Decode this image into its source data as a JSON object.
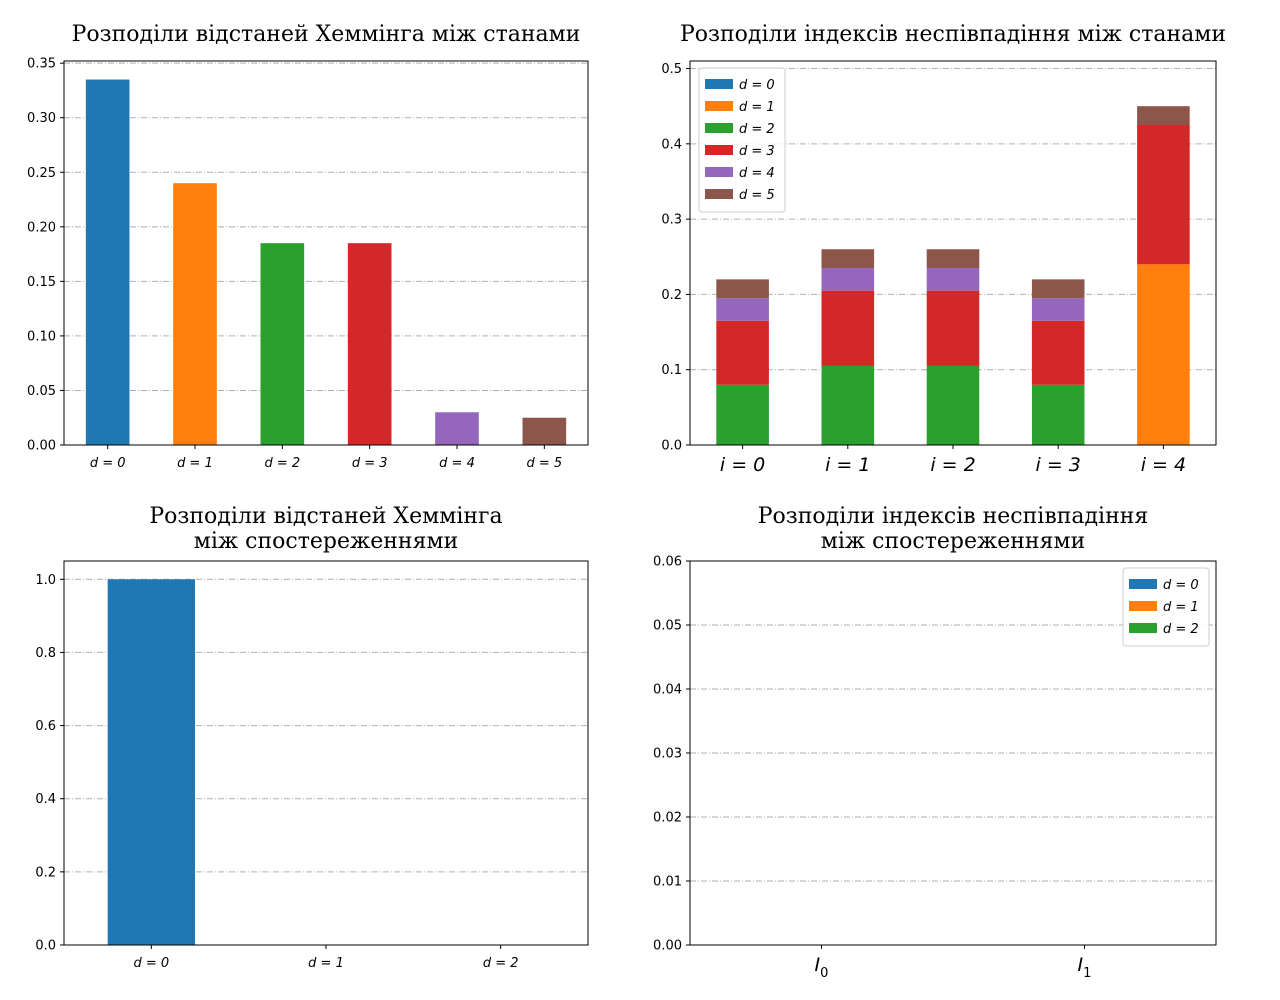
{
  "chart_data": [
    {
      "type": "bar",
      "title": [
        "Розподіли відстаней Хеммінга між станами"
      ],
      "categories": [
        "d = 0",
        "d = 1",
        "d = 2",
        "d = 3",
        "d = 4",
        "d = 5"
      ],
      "values": [
        0.335,
        0.24,
        0.185,
        0.185,
        0.03,
        0.025
      ],
      "colors": [
        "#1f77b4",
        "#ff7f0e",
        "#2ca02c",
        "#d62728",
        "#9467bd",
        "#8c564b"
      ],
      "yticks": [
        "0.00",
        "0.05",
        "0.10",
        "0.15",
        "0.20",
        "0.25",
        "0.30",
        "0.35"
      ],
      "ylim": [
        0,
        0.352
      ],
      "grid": true
    },
    {
      "type": "bar",
      "stacked": true,
      "title": [
        "Розподіли індексів неспівпадіння між станами"
      ],
      "categories": [
        "i = 0",
        "i = 1",
        "i = 2",
        "i = 3",
        "i = 4"
      ],
      "series": [
        {
          "name": "d = 0",
          "color": "#1f77b4",
          "values": [
            0,
            0,
            0,
            0,
            0
          ]
        },
        {
          "name": "d = 1",
          "color": "#ff7f0e",
          "values": [
            0,
            0,
            0,
            0,
            0.24
          ]
        },
        {
          "name": "d = 2",
          "color": "#2ca02c",
          "values": [
            0.08,
            0.105,
            0.105,
            0.08,
            0
          ]
        },
        {
          "name": "d = 3",
          "color": "#d62728",
          "values": [
            0.085,
            0.1,
            0.1,
            0.085,
            0.185
          ]
        },
        {
          "name": "d = 4",
          "color": "#9467bd",
          "values": [
            0.03,
            0.03,
            0.03,
            0.03,
            0
          ]
        },
        {
          "name": "d = 5",
          "color": "#8c564b",
          "values": [
            0.025,
            0.025,
            0.025,
            0.025,
            0.025
          ]
        }
      ],
      "yticks": [
        "0.0",
        "0.1",
        "0.2",
        "0.3",
        "0.4",
        "0.5"
      ],
      "ylim": [
        0,
        0.51
      ],
      "legend": "top-left",
      "grid": true
    },
    {
      "type": "bar",
      "title": [
        "Розподіли відстаней Хеммінга",
        "між спостереженнями"
      ],
      "categories": [
        "d = 0",
        "d = 1",
        "d = 2"
      ],
      "values": [
        1.0,
        0,
        0
      ],
      "colors": [
        "#1f77b4",
        "#ff7f0e",
        "#2ca02c"
      ],
      "yticks": [
        "0.0",
        "0.2",
        "0.4",
        "0.6",
        "0.8",
        "1.0"
      ],
      "ylim": [
        0,
        1.05
      ],
      "grid": true
    },
    {
      "type": "bar",
      "stacked": true,
      "title": [
        "Розподіли індексів неспівпадіння",
        "між спостереженнями"
      ],
      "categories": [
        "I",
        "I"
      ],
      "category_subscripts": [
        "0",
        "1"
      ],
      "series": [
        {
          "name": "d = 0",
          "color": "#1f77b4",
          "values": [
            0,
            0
          ]
        },
        {
          "name": "d = 1",
          "color": "#ff7f0e",
          "values": [
            0,
            0
          ]
        },
        {
          "name": "d = 2",
          "color": "#2ca02c",
          "values": [
            0,
            0
          ]
        }
      ],
      "yticks": [
        "0.00",
        "0.01",
        "0.02",
        "0.03",
        "0.04",
        "0.05",
        "0.06"
      ],
      "ylim": [
        0,
        0.06
      ],
      "legend": "top-right",
      "grid": true
    }
  ]
}
